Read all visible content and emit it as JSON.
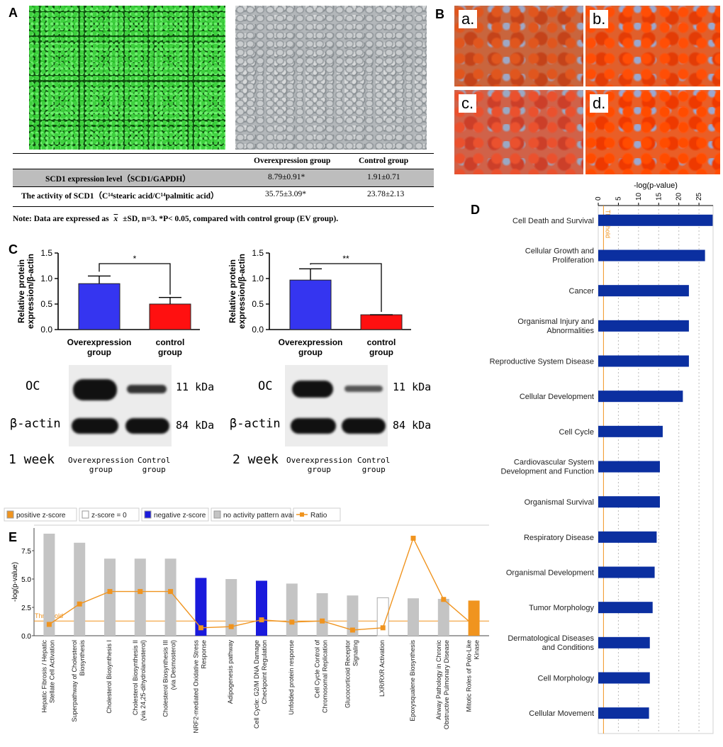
{
  "panel_labels": {
    "A": "A",
    "B": "B",
    "C": "C",
    "D": "D",
    "E": "E"
  },
  "panel_b": {
    "sublabels": [
      "a.",
      "b.",
      "c.",
      "d."
    ]
  },
  "table": {
    "headers": [
      "Overexpression group",
      "Control group"
    ],
    "rows": [
      {
        "label": "SCD1 expression level（SCD1/GAPDH）",
        "over": "8.79±0.91*",
        "ctrl": "1.91±0.71"
      },
      {
        "label": "The activity of SCD1（C¹⁴stearic acid/C¹⁴palmitic acid）",
        "over": "35.75±3.09*",
        "ctrl": "23.78±2.13"
      }
    ],
    "note": "Note: Data are expressed as",
    "xbar": "x",
    "note_rest": "±SD, n=3. *P< 0.05, compared with control group (EV group)."
  },
  "colors": {
    "over": "#3535f0",
    "ctrl": "#ff1010",
    "ipa": "#0b2fa0",
    "orange": "#f0941f",
    "gray": "#c4c4c4",
    "blue": "#1a1adc"
  },
  "chart_data": [
    {
      "type": "bar",
      "panel": "C-1",
      "categories": [
        "Overexpression group",
        "control group"
      ],
      "values": [
        0.9,
        0.5
      ],
      "errors": [
        0.15,
        0.13
      ],
      "ylabel": "Relative protein expression/β-actin",
      "yticks": [
        "0.0",
        "0.5",
        "1.0",
        "1.5"
      ],
      "ylim": [
        0,
        1.5
      ],
      "significance": "*"
    },
    {
      "type": "bar",
      "panel": "C-2",
      "categories": [
        "Overexpression group",
        "control group"
      ],
      "values": [
        0.97,
        0.29
      ],
      "errors": [
        0.22,
        0.0
      ],
      "ylabel": "Relative protein expression/β-actin",
      "yticks": [
        "0.0",
        "0.5",
        "1.0",
        "1.5"
      ],
      "ylim": [
        0,
        1.5
      ],
      "significance": "**"
    },
    {
      "type": "bar",
      "panel": "D",
      "orientation": "horizontal",
      "xlabel": "-log(p-value)",
      "xticks": [
        "0",
        "5",
        "10",
        "15",
        "20",
        "25"
      ],
      "xlim": [
        0,
        28.5
      ],
      "threshold": 1.3,
      "threshold_label": "Threshold",
      "categories": [
        "Cell Death and Survival",
        "Cellular Growth and Proliferation",
        "Cancer",
        "Organismal Injury and Abnormalities",
        "Reproductive System Disease",
        "Cellular Development",
        "Cell Cycle",
        "Cardiovascular System Development and Function",
        "Organismal Survival",
        "Respiratory Disease",
        "Organismal Development",
        "Tumor Morphology",
        "Dermatological Diseases and Conditions",
        "Cell Morphology",
        "Cellular Movement"
      ],
      "values": [
        28.4,
        26.5,
        22.5,
        22.5,
        22.5,
        21.0,
        16.0,
        15.3,
        15.3,
        14.5,
        14.0,
        13.5,
        12.8,
        12.8,
        12.6
      ]
    },
    {
      "type": "bar",
      "panel": "E",
      "ylabel": "-log(p-value)",
      "yticks": [
        "0.0",
        "2.5",
        "5.0",
        "7.5"
      ],
      "ylim": [
        0,
        9.5
      ],
      "legend": [
        "positive z-score",
        "z-score = 0",
        "negative z-score",
        "no activity pattern available",
        "Ratio"
      ],
      "threshold": 1.3,
      "threshold_label": "Threshold",
      "categories": [
        "Hepatic Fibrosis / Hepatic Stellate Cell Activation",
        "Superpathway of Cholesterol Biosynthesis",
        "Cholesterol Biosynthesis I",
        "Cholesterol Biosynthesis II (via 24,25-dihydrolanosterol)",
        "Cholesterol Biosynthesis III (via Desmosterol)",
        "NRF2-mediated Oxidative Stress Response",
        "Adipogenesis pathway",
        "Cell Cycle: G2/M DNA Damage Checkpoint Regulation",
        "Unfolded protein response",
        "Cell Cycle Control of Chromosomal Replication",
        "Glucocorticoid Receptor Signaling",
        "LXR/RXR Activation",
        "Epoxysqualene Biosynthesis",
        "Airway Pathology in Chronic Obstructive Pulmonary Disease",
        "Mitotic Roles of Polo-Like Kinase"
      ],
      "values": [
        9.0,
        8.2,
        6.8,
        6.8,
        6.8,
        5.1,
        5.0,
        4.85,
        4.6,
        3.75,
        3.55,
        3.35,
        3.3,
        3.25,
        3.1
      ],
      "bar_kind": [
        "gray",
        "gray",
        "gray",
        "gray",
        "gray",
        "blue",
        "gray",
        "blue",
        "gray",
        "gray",
        "gray",
        "white",
        "gray",
        "gray",
        "orange"
      ],
      "ratio": [
        1.0,
        2.8,
        3.9,
        3.9,
        3.9,
        0.7,
        0.8,
        1.4,
        1.2,
        1.3,
        0.5,
        0.7,
        8.6,
        3.2,
        0.9
      ]
    }
  ],
  "blots": [
    {
      "time": "1 week",
      "band1": "OC",
      "band2": "β-actin",
      "kda1": "11 kDa",
      "kda2": "84 kDa",
      "lane1": "Overexpression\ngroup",
      "lane2": "Control\ngroup"
    },
    {
      "time": "2 week",
      "band1": "OC",
      "band2": "β-actin",
      "kda1": "11 kDa",
      "kda2": "84 kDa",
      "lane1": "Overexpression\ngroup",
      "lane2": "Control\ngroup"
    }
  ]
}
